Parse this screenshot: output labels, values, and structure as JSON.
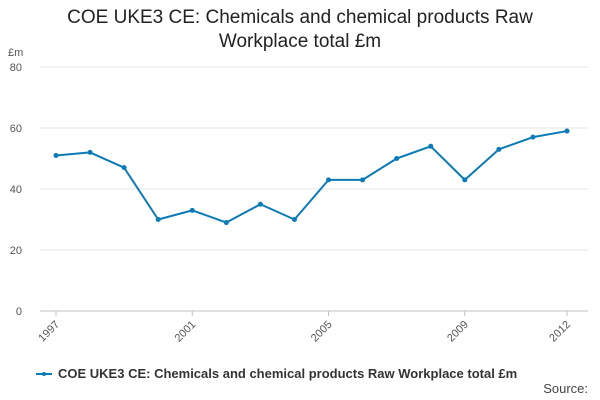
{
  "chart_data": {
    "type": "line",
    "title_line1": "COE UKE3 CE: Chemicals and chemical products Raw",
    "title_line2": "Workplace total £m",
    "yunit": "£m",
    "x": [
      1997,
      1998,
      1999,
      2000,
      2001,
      2002,
      2003,
      2004,
      2005,
      2006,
      2007,
      2008,
      2009,
      2010,
      2011,
      2012
    ],
    "xticks": [
      "1997",
      "2001",
      "2005",
      "2009",
      "2012"
    ],
    "ylim": [
      0,
      80
    ],
    "yticks": [
      "0",
      "20",
      "40",
      "60",
      "80"
    ],
    "grid": true,
    "legend_position": "bottom",
    "series": [
      {
        "name": "COE UKE3 CE: Chemicals and chemical products Raw Workplace total £m",
        "color": "#0b7bb8",
        "values": [
          51,
          52,
          47,
          30,
          33,
          29,
          35,
          30,
          43,
          43,
          50,
          54,
          43,
          53,
          57,
          59
        ]
      }
    ]
  },
  "source_label": "Source:"
}
